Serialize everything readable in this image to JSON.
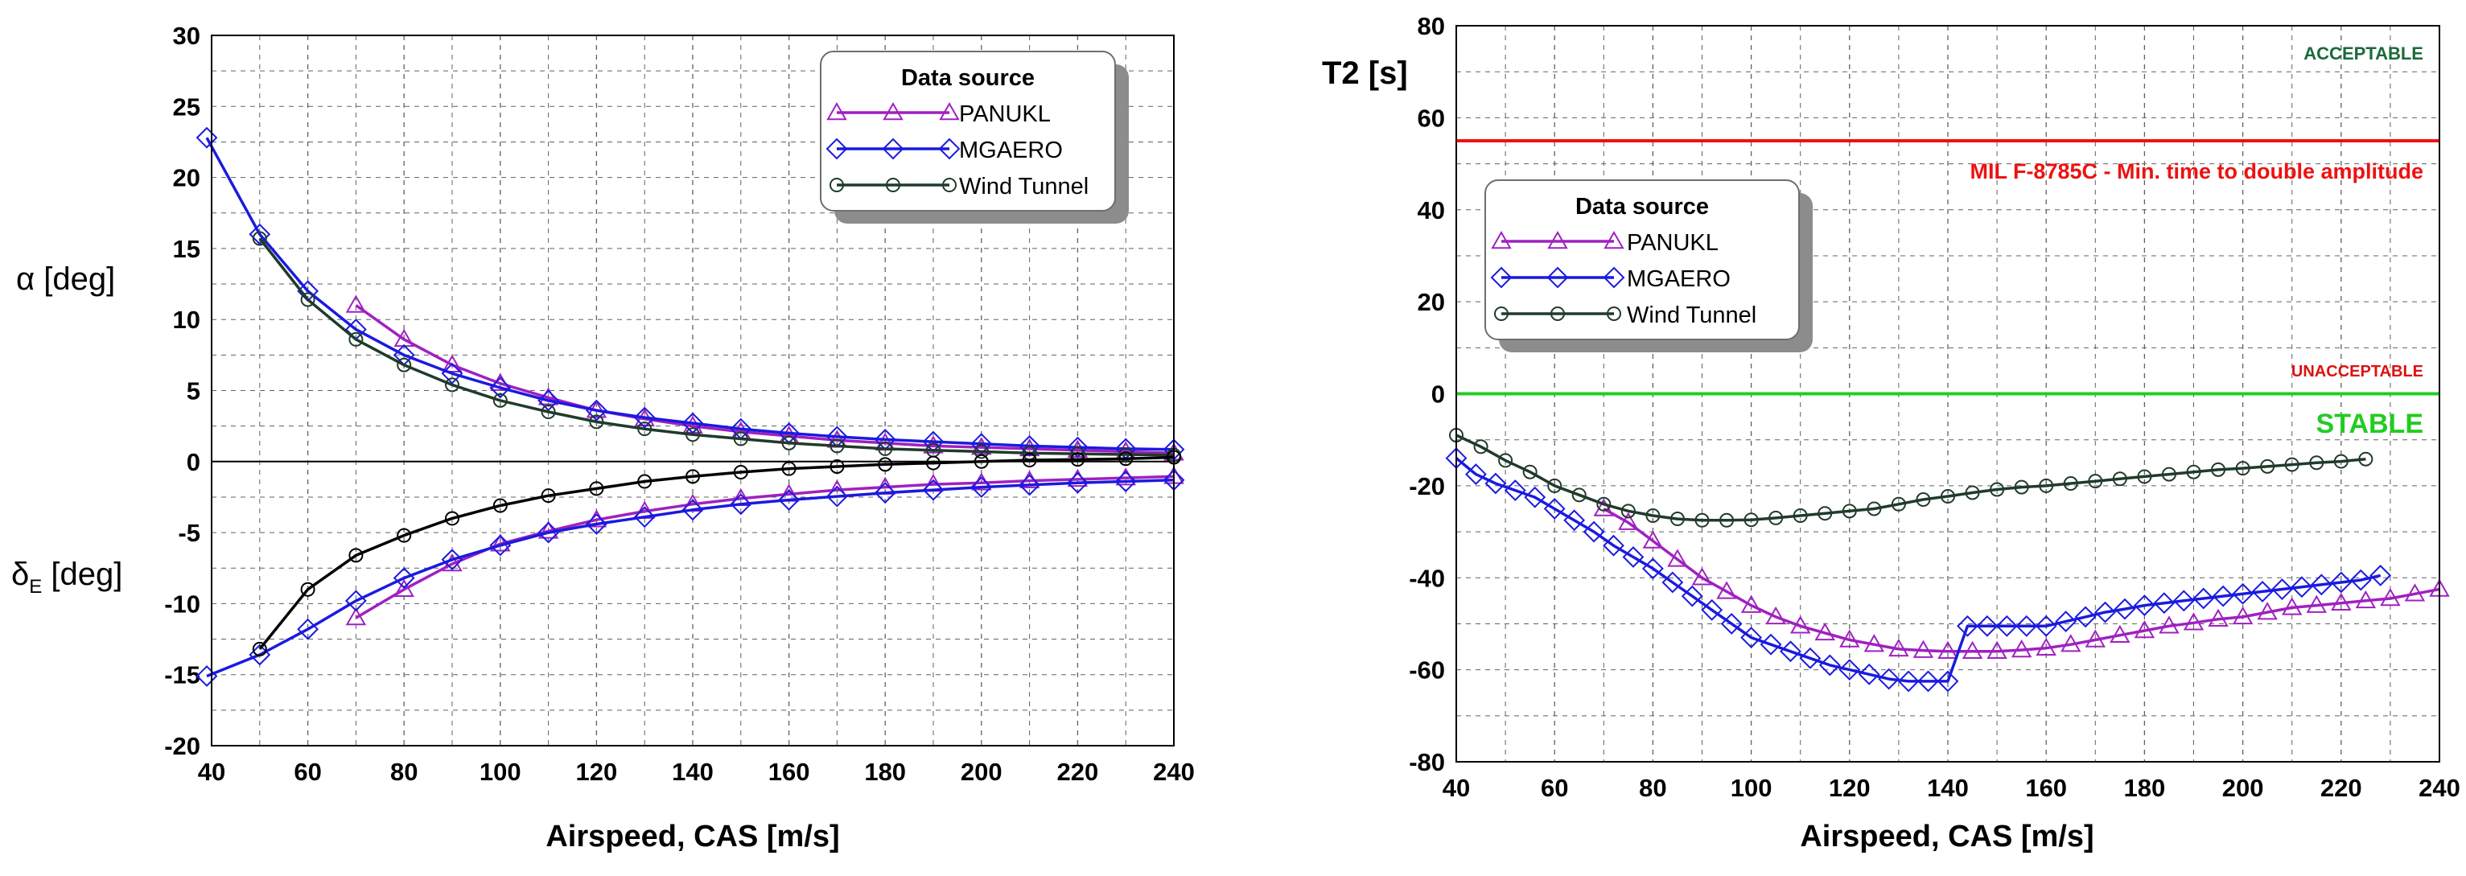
{
  "chart_data": [
    {
      "type": "line",
      "id": "left",
      "xlabel": "Airspeed, CAS [m/s]",
      "ylabel_top": "α [deg]",
      "ylabel_bottom_main": "δ",
      "ylabel_bottom_sub": "E",
      "ylabel_bottom_unit": " [deg]",
      "xlim": [
        40,
        240
      ],
      "ylim": [
        -20,
        30
      ],
      "x_ticks": [
        "40",
        "60",
        "80",
        "100",
        "120",
        "140",
        "160",
        "180",
        "200",
        "220",
        "240"
      ],
      "y_ticks": [
        "-20",
        "-15",
        "-10",
        "-5",
        "0",
        "5",
        "10",
        "15",
        "20",
        "25",
        "30"
      ],
      "grid": true,
      "legend": {
        "title": "Data source",
        "placement": "top-right",
        "entries": [
          "PANUKL",
          "MGAERO",
          "Wind Tunnel"
        ]
      },
      "series": [
        {
          "name": "PANUKL",
          "quantity": "alpha",
          "color": "#a020c0",
          "marker": "triangle",
          "x": [
            70,
            80,
            90,
            100,
            110,
            120,
            130,
            140,
            150,
            160,
            170,
            180,
            190,
            200,
            210,
            220,
            230,
            240
          ],
          "y": [
            11,
            8.6,
            6.8,
            5.5,
            4.5,
            3.6,
            3,
            2.5,
            2.1,
            1.8,
            1.5,
            1.3,
            1.1,
            1,
            0.9,
            0.8,
            0.7,
            0.6
          ]
        },
        {
          "name": "MGAERO",
          "quantity": "alpha",
          "color": "#1a1ae0",
          "marker": "diamond",
          "x": [
            39,
            50,
            60,
            70,
            80,
            90,
            100,
            110,
            120,
            130,
            140,
            150,
            160,
            170,
            180,
            190,
            200,
            210,
            220,
            230,
            240
          ],
          "y": [
            22.8,
            16,
            12,
            9.3,
            7.5,
            6.2,
            5.2,
            4.3,
            3.6,
            3.1,
            2.7,
            2.3,
            2,
            1.75,
            1.55,
            1.4,
            1.25,
            1.1,
            1,
            0.9,
            0.85
          ]
        },
        {
          "name": "Wind Tunnel",
          "quantity": "alpha",
          "color": "#1f3b2b",
          "marker": "circle",
          "x": [
            50,
            60,
            70,
            80,
            90,
            100,
            110,
            120,
            130,
            140,
            150,
            160,
            170,
            180,
            190,
            200,
            210,
            220,
            230,
            240
          ],
          "y": [
            15.7,
            11.4,
            8.6,
            6.8,
            5.4,
            4.3,
            3.5,
            2.8,
            2.3,
            1.9,
            1.6,
            1.3,
            1.1,
            0.9,
            0.8,
            0.7,
            0.6,
            0.55,
            0.5,
            0.45
          ]
        },
        {
          "name": "PANUKL",
          "quantity": "delta_e",
          "color": "#a020c0",
          "marker": "triangle",
          "x": [
            70,
            80,
            90,
            100,
            110,
            120,
            130,
            140,
            150,
            160,
            170,
            180,
            190,
            200,
            210,
            220,
            230,
            240
          ],
          "y": [
            -11,
            -9,
            -7.2,
            -5.8,
            -4.9,
            -4.1,
            -3.5,
            -3,
            -2.6,
            -2.3,
            -2,
            -1.8,
            -1.6,
            -1.5,
            -1.35,
            -1.25,
            -1.15,
            -1.05
          ]
        },
        {
          "name": "MGAERO",
          "quantity": "delta_e",
          "color": "#1a1ae0",
          "marker": "diamond",
          "x": [
            39,
            50,
            60,
            70,
            80,
            90,
            100,
            110,
            120,
            130,
            140,
            150,
            160,
            170,
            180,
            190,
            200,
            210,
            220,
            230,
            240
          ],
          "y": [
            -15.1,
            -13.6,
            -11.8,
            -9.8,
            -8.2,
            -6.9,
            -5.9,
            -5,
            -4.4,
            -3.9,
            -3.4,
            -3,
            -2.7,
            -2.45,
            -2.2,
            -2,
            -1.8,
            -1.65,
            -1.5,
            -1.4,
            -1.3
          ]
        },
        {
          "name": "Wind Tunnel",
          "quantity": "delta_e",
          "color": "#000000",
          "marker": "circle",
          "x": [
            50,
            60,
            70,
            80,
            90,
            100,
            110,
            120,
            130,
            140,
            150,
            160,
            170,
            180,
            190,
            200,
            210,
            220,
            230,
            240
          ],
          "y": [
            -13.2,
            -9,
            -6.6,
            -5.2,
            -4,
            -3.1,
            -2.4,
            -1.9,
            -1.4,
            -1.05,
            -0.75,
            -0.5,
            -0.35,
            -0.2,
            -0.1,
            0,
            0.1,
            0.15,
            0.2,
            0.3
          ]
        }
      ]
    },
    {
      "type": "line",
      "id": "right",
      "xlabel": "Airspeed, CAS [m/s]",
      "ylabel": "T2 [s]",
      "xlim": [
        40,
        240
      ],
      "ylim": [
        -80,
        80
      ],
      "x_ticks": [
        "40",
        "60",
        "80",
        "100",
        "120",
        "140",
        "160",
        "180",
        "200",
        "220",
        "240"
      ],
      "y_ticks": [
        "-80",
        "-60",
        "-40",
        "-20",
        "0",
        "20",
        "40",
        "60",
        "80"
      ],
      "grid": true,
      "legend": {
        "title": "Data source",
        "placement": "center-left",
        "entries": [
          "PANUKL",
          "MGAERO",
          "Wind Tunnel"
        ]
      },
      "reference_lines": [
        {
          "y": 55,
          "color": "#ee1111",
          "label": "MIL F-8785C - Min. time to double amplitude"
        },
        {
          "y": 0,
          "color": "#22cc22",
          "label": "STABLE"
        }
      ],
      "annotations": [
        {
          "text": "ACCEPTABLE",
          "color": "#1a6a3a"
        },
        {
          "text": "UNACCEPTABLE",
          "color": "#dd1111"
        }
      ],
      "series": [
        {
          "name": "PANUKL",
          "color": "#a020c0",
          "marker": "triangle",
          "x": [
            70,
            75,
            80,
            85,
            90,
            95,
            100,
            105,
            110,
            115,
            120,
            125,
            130,
            135,
            140,
            145,
            150,
            155,
            160,
            165,
            170,
            175,
            180,
            185,
            190,
            195,
            200,
            205,
            210,
            215,
            220,
            225,
            230,
            235,
            240
          ],
          "y": [
            -25,
            -28,
            -32,
            -36,
            -40,
            -43,
            -46,
            -48.5,
            -50.5,
            -52,
            -53.5,
            -54.5,
            -55.5,
            -55.8,
            -56,
            -56,
            -56,
            -55.7,
            -55.3,
            -54.5,
            -53.5,
            -52.5,
            -51.5,
            -50.5,
            -49.8,
            -49,
            -48.5,
            -47.5,
            -46.5,
            -46,
            -45.5,
            -45,
            -44.5,
            -43.5,
            -42.5
          ]
        },
        {
          "name": "MGAERO",
          "color": "#1a1ae0",
          "marker": "diamond",
          "x": [
            40,
            44,
            48,
            52,
            56,
            60,
            64,
            68,
            72,
            76,
            80,
            84,
            88,
            92,
            96,
            100,
            104,
            108,
            112,
            116,
            120,
            124,
            128,
            132,
            136,
            140,
            144,
            148,
            152,
            156,
            160,
            164,
            168,
            172,
            176,
            180,
            184,
            188,
            192,
            196,
            200,
            204,
            208,
            212,
            216,
            220,
            224,
            228
          ],
          "y": [
            -14,
            -17.5,
            -19.5,
            -21,
            -22.5,
            -25,
            -27.5,
            -30,
            -33,
            -35.5,
            -38,
            -41,
            -44,
            -47,
            -50,
            -53,
            -54.5,
            -56,
            -57.5,
            -59,
            -60,
            -61,
            -62,
            -62.5,
            -62.5,
            -62.5,
            -50.5,
            -50.5,
            -50.5,
            -50.5,
            -50.5,
            -49.5,
            -48.5,
            -47.5,
            -46.8,
            -46,
            -45.5,
            -45,
            -44.5,
            -44,
            -43.5,
            -43,
            -42.5,
            -42,
            -41.5,
            -41,
            -40.5,
            -39.5
          ]
        },
        {
          "name": "Wind Tunnel",
          "color": "#1f3b2b",
          "marker": "circle",
          "x": [
            40,
            45,
            50,
            55,
            60,
            65,
            70,
            75,
            80,
            85,
            90,
            95,
            100,
            105,
            110,
            115,
            120,
            125,
            130,
            135,
            140,
            145,
            150,
            155,
            160,
            165,
            170,
            175,
            180,
            185,
            190,
            195,
            200,
            205,
            210,
            215,
            220,
            225
          ],
          "y": [
            -9,
            -11.5,
            -14.5,
            -17,
            -20,
            -22,
            -24,
            -25.5,
            -26.5,
            -27.2,
            -27.5,
            -27.5,
            -27.4,
            -27,
            -26.5,
            -26,
            -25.5,
            -25,
            -24,
            -23,
            -22.3,
            -21.5,
            -20.8,
            -20.3,
            -20,
            -19.5,
            -19,
            -18.5,
            -18,
            -17.5,
            -17,
            -16.5,
            -16.2,
            -15.8,
            -15.4,
            -15,
            -14.7,
            -14.2
          ]
        }
      ]
    }
  ]
}
